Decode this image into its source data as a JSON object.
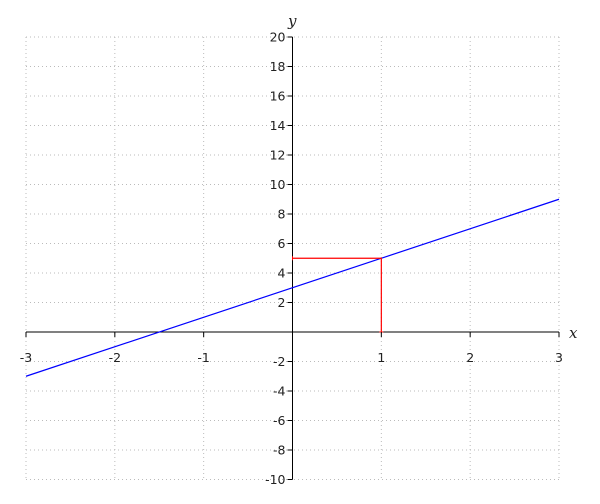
{
  "chart_data": {
    "type": "line",
    "title": "",
    "xlabel": "x",
    "ylabel": "y",
    "xlim": [
      -3,
      3
    ],
    "ylim": [
      -10,
      20
    ],
    "grid": true,
    "x_ticks": [
      -3,
      -2,
      -1,
      1,
      2,
      3
    ],
    "y_ticks": [
      -10,
      -8,
      -6,
      -4,
      -2,
      2,
      4,
      6,
      8,
      10,
      12,
      14,
      16,
      18,
      20
    ],
    "series": [
      {
        "x": [
          -3,
          3
        ],
        "y": [
          -3,
          9
        ],
        "color": "#0000ff"
      },
      {
        "x": [
          0,
          1,
          1
        ],
        "y": [
          5,
          5,
          0
        ],
        "color": "#ff0000"
      }
    ]
  }
}
